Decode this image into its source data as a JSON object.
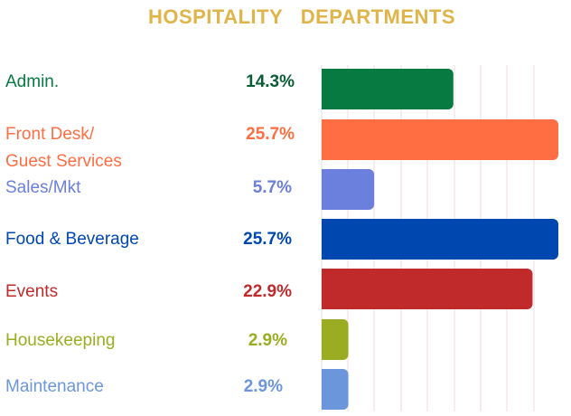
{
  "chart_data": {
    "type": "bar",
    "orientation": "horizontal",
    "title": "HOSPITALITY   DEPARTMENTS",
    "categories": [
      "Admin.",
      "Front Desk/\nGuest Services",
      "Sales/Mkt",
      "Food & Beverage",
      "Events",
      "Housekeeping",
      "Maintenance"
    ],
    "values": [
      14.3,
      25.7,
      5.7,
      25.7,
      22.9,
      2.9,
      2.9
    ],
    "value_labels": [
      "14.3%",
      "25.7%",
      "5.7%",
      "25.7%",
      "22.9%",
      "2.9%",
      "2.9%"
    ],
    "colors": [
      "#077a41",
      "#ff6e42",
      "#6b7fdc",
      "#0047b0",
      "#c12a2a",
      "#9aad22",
      "#6b96dc"
    ],
    "xlim": [
      0,
      27
    ],
    "grid": true,
    "unit": "%"
  }
}
